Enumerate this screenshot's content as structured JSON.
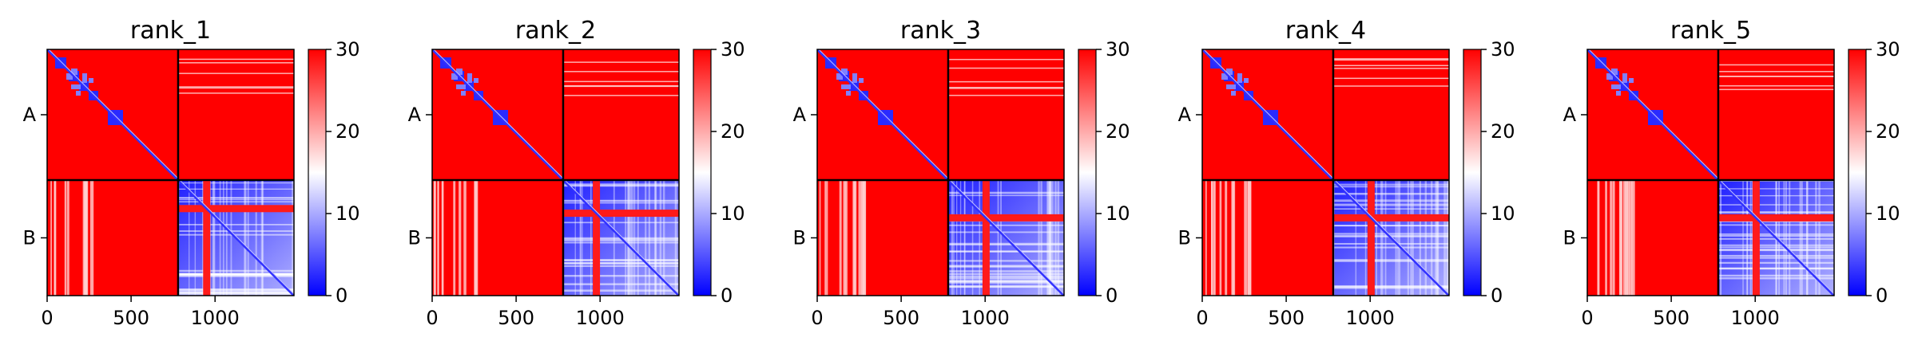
{
  "chart_data": [
    {
      "type": "heatmap",
      "title": "rank_1",
      "x_ticks": [
        "0",
        "500",
        "1000"
      ],
      "x_tick_values": [
        0,
        500,
        1000
      ],
      "y_ticks": [
        "A",
        "B"
      ],
      "colorbar_ticks": [
        "0",
        "10",
        "20",
        "30"
      ],
      "colorbar_range": [
        0,
        30
      ],
      "colormap": [
        "#0000ff",
        "#ffffff",
        "#ff0000"
      ],
      "chain_boundary": 780,
      "length": 1470
    },
    {
      "type": "heatmap",
      "title": "rank_2",
      "x_ticks": [
        "0",
        "500",
        "1000"
      ],
      "x_tick_values": [
        0,
        500,
        1000
      ],
      "y_ticks": [
        "A",
        "B"
      ],
      "colorbar_ticks": [
        "0",
        "10",
        "20",
        "30"
      ],
      "colorbar_range": [
        0,
        30
      ],
      "colormap": [
        "#0000ff",
        "#ffffff",
        "#ff0000"
      ],
      "chain_boundary": 780,
      "length": 1470
    },
    {
      "type": "heatmap",
      "title": "rank_3",
      "x_ticks": [
        "0",
        "500",
        "1000"
      ],
      "x_tick_values": [
        0,
        500,
        1000
      ],
      "y_ticks": [
        "A",
        "B"
      ],
      "colorbar_ticks": [
        "0",
        "10",
        "20",
        "30"
      ],
      "colorbar_range": [
        0,
        30
      ],
      "colormap": [
        "#0000ff",
        "#ffffff",
        "#ff0000"
      ],
      "chain_boundary": 780,
      "length": 1470
    },
    {
      "type": "heatmap",
      "title": "rank_4",
      "x_ticks": [
        "0",
        "500",
        "1000"
      ],
      "x_tick_values": [
        0,
        500,
        1000
      ],
      "y_ticks": [
        "A",
        "B"
      ],
      "colorbar_ticks": [
        "0",
        "10",
        "20",
        "30"
      ],
      "colorbar_range": [
        0,
        30
      ],
      "colormap": [
        "#0000ff",
        "#ffffff",
        "#ff0000"
      ],
      "chain_boundary": 780,
      "length": 1470
    },
    {
      "type": "heatmap",
      "title": "rank_5",
      "x_ticks": [
        "0",
        "500",
        "1000"
      ],
      "x_tick_values": [
        0,
        500,
        1000
      ],
      "y_ticks": [
        "A",
        "B"
      ],
      "colorbar_ticks": [
        "0",
        "10",
        "20",
        "30"
      ],
      "colorbar_range": [
        0,
        30
      ],
      "colormap": [
        "#0000ff",
        "#ffffff",
        "#ff0000"
      ],
      "chain_boundary": 780,
      "length": 1470
    }
  ]
}
